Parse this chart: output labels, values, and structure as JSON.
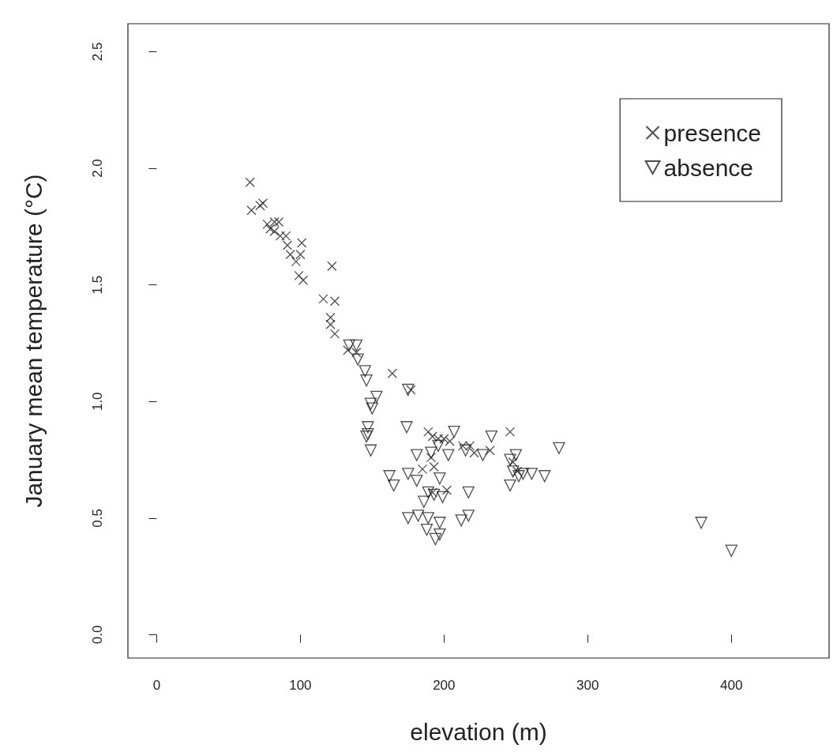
{
  "chart_data": {
    "type": "scatter",
    "xlabel": "elevation (m)",
    "ylabel": "January mean temperature (°C)",
    "xlim": [
      -20,
      468
    ],
    "ylim": [
      -0.1,
      2.62
    ],
    "xticks": [
      0,
      100,
      200,
      300,
      400
    ],
    "yticks": [
      {
        "value": 0,
        "label": "0.0"
      },
      0.5,
      {
        "value": 1,
        "label": "1.0"
      },
      1.5,
      {
        "value": 2,
        "label": "2.0"
      },
      2.5
    ],
    "grid": false,
    "legend": "top right",
    "series": [
      {
        "name": "presence",
        "color": "#222222",
        "marker": "cross",
        "x": [
          65,
          66,
          72,
          74,
          77,
          79,
          82,
          85,
          82,
          86,
          90,
          91,
          93,
          97,
          100,
          99,
          102,
          101,
          122,
          116,
          124,
          121,
          121,
          124,
          133,
          139,
          164,
          177,
          246,
          232,
          189,
          192,
          196,
          200,
          204,
          213,
          218,
          191,
          193,
          185,
          202,
          192,
          248,
          251,
          221
        ],
        "values": [
          1.94,
          1.82,
          1.84,
          1.85,
          1.76,
          1.74,
          1.77,
          1.77,
          1.73,
          1.71,
          1.71,
          1.67,
          1.63,
          1.6,
          1.63,
          1.54,
          1.52,
          1.68,
          1.58,
          1.44,
          1.43,
          1.36,
          1.33,
          1.29,
          1.22,
          1.21,
          1.12,
          1.05,
          0.87,
          0.79,
          0.87,
          0.85,
          0.84,
          0.84,
          0.83,
          0.81,
          0.81,
          0.76,
          0.72,
          0.71,
          0.62,
          0.61,
          0.74,
          0.7,
          0.78
        ]
      },
      {
        "name": "absence",
        "color": "#222222",
        "marker": "triangle",
        "x": [
          134,
          139,
          140,
          145,
          146,
          149,
          150,
          153,
          147,
          147,
          149,
          174,
          175,
          207,
          233,
          146,
          181,
          203,
          227,
          162,
          165,
          175,
          181,
          197,
          189,
          193,
          199,
          217,
          186,
          175,
          182,
          189,
          188,
          197,
          212,
          217,
          194,
          197,
          246,
          246,
          280,
          270,
          261,
          255,
          252,
          248,
          250,
          379,
          400,
          191,
          196,
          215
        ],
        "values": [
          1.24,
          1.24,
          1.18,
          1.13,
          1.09,
          0.99,
          0.97,
          1.02,
          0.86,
          0.89,
          0.79,
          0.89,
          1.05,
          0.87,
          0.85,
          0.85,
          0.77,
          0.77,
          0.77,
          0.68,
          0.64,
          0.69,
          0.66,
          0.67,
          0.61,
          0.6,
          0.59,
          0.61,
          0.57,
          0.5,
          0.51,
          0.5,
          0.45,
          0.48,
          0.49,
          0.51,
          0.41,
          0.43,
          0.64,
          0.75,
          0.8,
          0.68,
          0.69,
          0.69,
          0.68,
          0.7,
          0.77,
          0.48,
          0.36,
          0.78,
          0.81,
          0.79
        ]
      }
    ]
  }
}
